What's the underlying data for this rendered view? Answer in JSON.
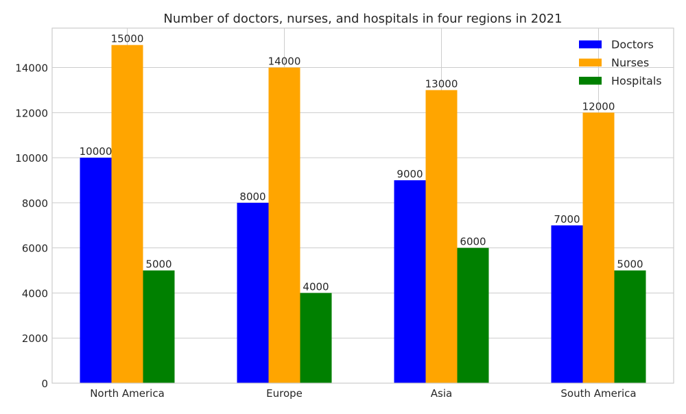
{
  "chart_data": {
    "type": "bar",
    "title": "Number of doctors, nurses, and hospitals in four regions in 2021",
    "xlabel": "",
    "ylabel": "",
    "categories": [
      "North America",
      "Europe",
      "Asia",
      "South America"
    ],
    "series": [
      {
        "name": "Doctors",
        "color": "#0000ff",
        "values": [
          10000,
          8000,
          9000,
          7000
        ]
      },
      {
        "name": "Nurses",
        "color": "#ffa500",
        "values": [
          15000,
          14000,
          13000,
          12000
        ]
      },
      {
        "name": "Hospitals",
        "color": "#008000",
        "values": [
          5000,
          4000,
          6000,
          5000
        ]
      }
    ],
    "ylim": [
      0,
      15750
    ],
    "yticks": [
      0,
      2000,
      4000,
      6000,
      8000,
      10000,
      12000,
      14000
    ],
    "grid": true,
    "legend_position": "top-right",
    "data_labels": true
  }
}
